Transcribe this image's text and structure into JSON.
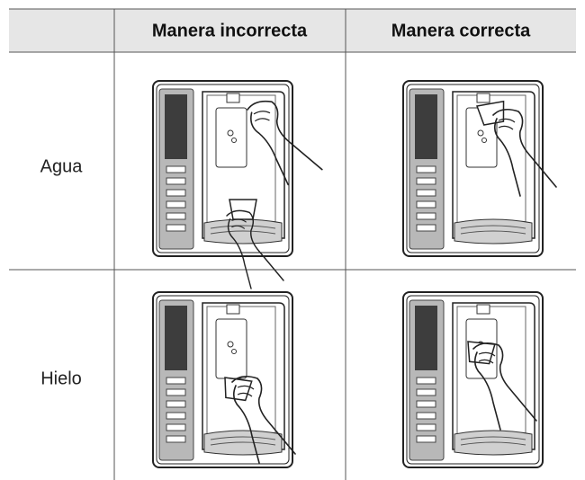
{
  "table": {
    "columns": [
      "Manera incorrecta",
      "Manera correcta"
    ],
    "rows": [
      {
        "label": "Agua"
      },
      {
        "label": "Hielo"
      }
    ]
  }
}
